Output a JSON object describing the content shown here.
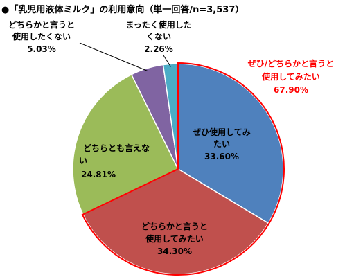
{
  "chart_data": {
    "type": "pie",
    "title": "●「乳児用液体ミルク」の利用意向（単一回答/n=3,537）",
    "slices": [
      {
        "label_lines": [
          "ぜひ使用してみ",
          "たい"
        ],
        "value": 33.6,
        "value_text": "33.60%",
        "color": "#4f81bd"
      },
      {
        "label_lines": [
          "どちらかと言うと",
          "使用してみたい"
        ],
        "value": 34.3,
        "value_text": "34.30%",
        "color": "#c0504d"
      },
      {
        "label_lines": [
          "どちらとも言えな",
          "い"
        ],
        "value": 24.81,
        "value_text": "24.81%",
        "color": "#9bbb59"
      },
      {
        "label_lines": [
          "どちらかと言うと",
          "使用したくない"
        ],
        "value": 5.03,
        "value_text": "5.03%",
        "color": "#8064a2"
      },
      {
        "label_lines": [
          "まったく使用した",
          "くない"
        ],
        "value": 2.26,
        "value_text": "2.26%",
        "color": "#4bacc6"
      }
    ],
    "annotation": {
      "lines": [
        "ぜひ/どちらかと言うと",
        "使用してみたい"
      ],
      "value_text": "67.90%",
      "color": "#ff0000"
    }
  }
}
